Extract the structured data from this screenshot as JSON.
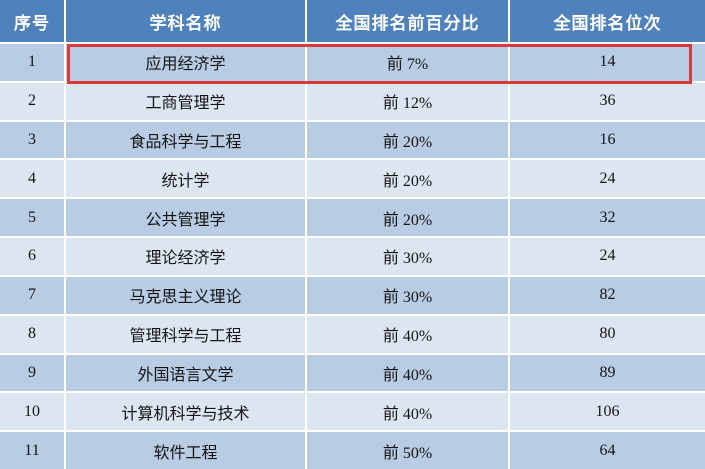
{
  "colors": {
    "header_bg": "#4f81bd",
    "row_odd_bg": "#b8cce4",
    "row_even_bg": "#dce6f1",
    "highlight_border": "#d63a3a",
    "header_text": "#ffffff",
    "body_text": "#141414"
  },
  "table": {
    "headers": {
      "index": "序号",
      "subject": "学科名称",
      "percentile": "全国排名前百分比",
      "rank": "全国排名位次"
    },
    "rows": [
      {
        "index": "1",
        "subject": "应用经济学",
        "percentile": "前 7%",
        "rank": "14",
        "highlighted": true
      },
      {
        "index": "2",
        "subject": "工商管理学",
        "percentile": "前 12%",
        "rank": "36"
      },
      {
        "index": "3",
        "subject": "食品科学与工程",
        "percentile": "前 20%",
        "rank": "16"
      },
      {
        "index": "4",
        "subject": "统计学",
        "percentile": "前 20%",
        "rank": "24"
      },
      {
        "index": "5",
        "subject": "公共管理学",
        "percentile": "前 20%",
        "rank": "32"
      },
      {
        "index": "6",
        "subject": "理论经济学",
        "percentile": "前 30%",
        "rank": "24"
      },
      {
        "index": "7",
        "subject": "马克思主义理论",
        "percentile": "前 30%",
        "rank": "82"
      },
      {
        "index": "8",
        "subject": "管理科学与工程",
        "percentile": "前 40%",
        "rank": "80"
      },
      {
        "index": "9",
        "subject": "外国语言文学",
        "percentile": "前 40%",
        "rank": "89"
      },
      {
        "index": "10",
        "subject": "计算机科学与技术",
        "percentile": "前 40%",
        "rank": "106"
      },
      {
        "index": "11",
        "subject": "软件工程",
        "percentile": "前 50%",
        "rank": "64"
      }
    ],
    "highlight": {
      "row_index": 1,
      "border_color": "#d63a3a"
    }
  },
  "chart_data": {
    "type": "table",
    "title": "",
    "columns": [
      "序号",
      "学科名称",
      "全国排名前百分比",
      "全国排名位次"
    ],
    "rows": [
      [
        "1",
        "应用经济学",
        "前 7%",
        "14"
      ],
      [
        "2",
        "工商管理学",
        "前 12%",
        "36"
      ],
      [
        "3",
        "食品科学与工程",
        "前 20%",
        "16"
      ],
      [
        "4",
        "统计学",
        "前 20%",
        "24"
      ],
      [
        "5",
        "公共管理学",
        "前 20%",
        "32"
      ],
      [
        "6",
        "理论经济学",
        "前 30%",
        "24"
      ],
      [
        "7",
        "马克思主义理论",
        "前 30%",
        "82"
      ],
      [
        "8",
        "管理科学与工程",
        "前 40%",
        "80"
      ],
      [
        "9",
        "外国语言文学",
        "前 40%",
        "89"
      ],
      [
        "10",
        "计算机科学与技术",
        "前 40%",
        "106"
      ],
      [
        "11",
        "软件工程",
        "前 50%",
        "64"
      ]
    ],
    "highlighted_row": [
      "1",
      "应用经济学",
      "前 7%",
      "14"
    ],
    "layout": {
      "banded_rows": true,
      "header_fill": "#4f81bd",
      "band_fills": [
        "#b8cce4",
        "#dce6f1"
      ]
    }
  }
}
